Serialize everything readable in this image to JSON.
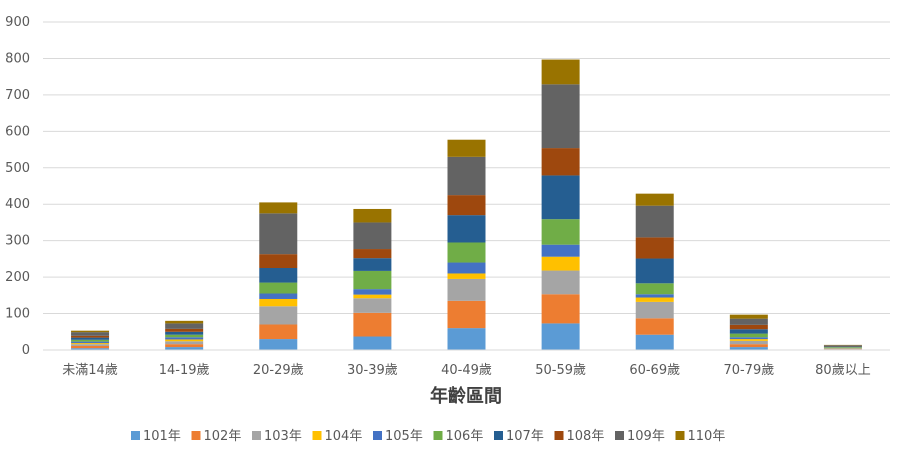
{
  "chart_data": {
    "type": "bar",
    "stacked": true,
    "title": "",
    "xlabel": "年齡區間",
    "ylabel": "",
    "ylim": [
      0,
      900
    ],
    "yticks": [
      0,
      100,
      200,
      300,
      400,
      500,
      600,
      700,
      800,
      900
    ],
    "grid": true,
    "legend_position": "bottom",
    "categories": [
      "未滿14歲",
      "14-19歲",
      "20-29歲",
      "30-39歲",
      "40-49歲",
      "50-59歲",
      "60-69歲",
      "70-79歲",
      "80歲以上"
    ],
    "series": [
      {
        "name": "101年",
        "color": "#5B9BD5",
        "values": [
          5,
          8,
          30,
          37,
          60,
          73,
          42,
          8,
          1
        ]
      },
      {
        "name": "102年",
        "color": "#ED7D31",
        "values": [
          6,
          8,
          40,
          65,
          75,
          80,
          45,
          8,
          1
        ]
      },
      {
        "name": "103年",
        "color": "#A5A5A5",
        "values": [
          5,
          8,
          50,
          40,
          60,
          65,
          45,
          9,
          2
        ]
      },
      {
        "name": "104年",
        "color": "#FFC000",
        "values": [
          3,
          5,
          20,
          10,
          15,
          38,
          12,
          5,
          1
        ]
      },
      {
        "name": "105年",
        "color": "#4472C4",
        "values": [
          4,
          6,
          15,
          15,
          30,
          33,
          9,
          5,
          1
        ]
      },
      {
        "name": "106年",
        "color": "#70AD47",
        "values": [
          5,
          7,
          30,
          50,
          55,
          70,
          30,
          10,
          2
        ]
      },
      {
        "name": "107年",
        "color": "#255E91",
        "values": [
          6,
          8,
          40,
          35,
          75,
          120,
          68,
          12,
          2
        ]
      },
      {
        "name": "108年",
        "color": "#9E480E",
        "values": [
          5,
          8,
          38,
          25,
          55,
          75,
          58,
          12,
          1
        ]
      },
      {
        "name": "109年",
        "color": "#636363",
        "values": [
          10,
          15,
          112,
          73,
          105,
          175,
          87,
          17,
          2
        ]
      },
      {
        "name": "110年",
        "color": "#997300",
        "values": [
          4,
          7,
          30,
          37,
          47,
          68,
          33,
          11,
          1
        ]
      }
    ]
  }
}
